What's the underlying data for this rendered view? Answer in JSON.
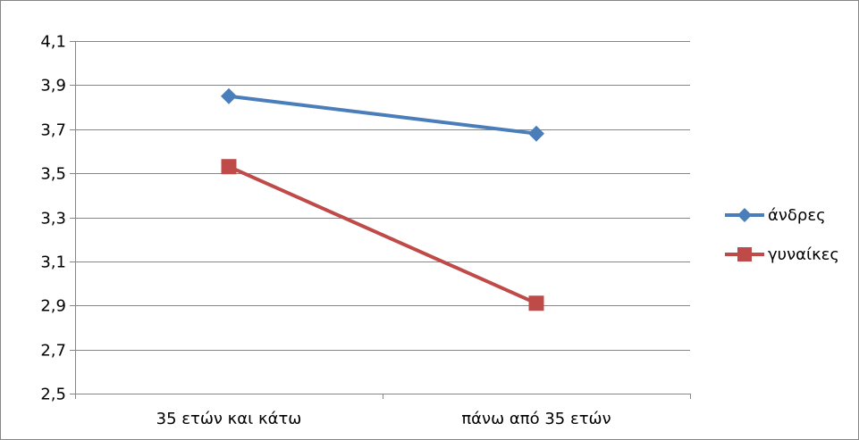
{
  "chart_data": {
    "type": "line",
    "categories": [
      "35 ετών και κάτω",
      "πάνω από 35 ετών"
    ],
    "series": [
      {
        "name": "άνδρες",
        "values": [
          3.85,
          3.68
        ],
        "color": "#4a7ebb",
        "marker": "diamond"
      },
      {
        "name": "γυναίκες",
        "values": [
          3.53,
          2.91
        ],
        "color": "#be4b48",
        "marker": "square"
      }
    ],
    "y_ticks": [
      "2,5",
      "2,7",
      "2,9",
      "3,1",
      "3,3",
      "3,5",
      "3,7",
      "3,9",
      "4,1"
    ],
    "ylim": [
      2.5,
      4.1
    ],
    "ystep": 0.2,
    "grid": true,
    "legend_position": "right",
    "gridline_color": "#868686",
    "background": "#ffffff"
  }
}
